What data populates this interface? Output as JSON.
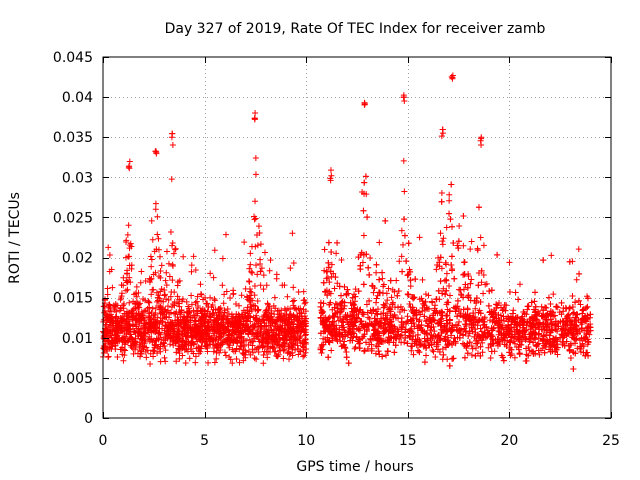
{
  "chart_data": {
    "type": "scatter",
    "title": "Day 327 of 2019, Rate Of TEC Index for receiver zamb",
    "xlabel": "GPS time / hours",
    "ylabel": "ROTI / TECUs",
    "xlim": [
      0,
      25
    ],
    "ylim": [
      0,
      0.045
    ],
    "xticks": [
      "0",
      "5",
      "10",
      "15",
      "20",
      "25"
    ],
    "yticks": [
      "0",
      "0.005",
      "0.01",
      "0.015",
      "0.02",
      "0.025",
      "0.03",
      "0.035",
      "0.04",
      "0.045"
    ],
    "grid": true,
    "marker": "+",
    "color": "#ff0000",
    "series": [
      {
        "name": "ROTI",
        "segments": [
          [
            0.0,
            10.0
          ],
          [
            10.7,
            24.0
          ]
        ],
        "data_gap": [
          10.0,
          10.7
        ],
        "baseline_range": [
          0.003,
          0.02
        ],
        "typical_median": 0.011,
        "peaks": [
          {
            "x": 1.3,
            "y": 0.0325
          },
          {
            "x": 2.6,
            "y": 0.034
          },
          {
            "x": 3.4,
            "y": 0.0355
          },
          {
            "x": 7.5,
            "y": 0.0385
          },
          {
            "x": 11.2,
            "y": 0.031
          },
          {
            "x": 12.9,
            "y": 0.0395
          },
          {
            "x": 14.8,
            "y": 0.0405
          },
          {
            "x": 16.7,
            "y": 0.0365
          },
          {
            "x": 17.2,
            "y": 0.043
          },
          {
            "x": 18.6,
            "y": 0.035
          }
        ]
      }
    ]
  }
}
